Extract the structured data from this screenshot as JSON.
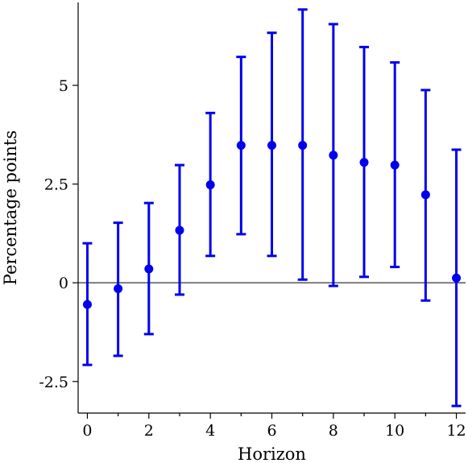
{
  "chart_data": {
    "type": "scatter",
    "title": "",
    "xlabel": "Horizon",
    "ylabel": "Percentage points",
    "xlim": [
      -0.3,
      12.3
    ],
    "ylim": [
      -3.3,
      7.1
    ],
    "x_ticks": [
      0,
      2,
      4,
      6,
      8,
      10,
      12
    ],
    "x_minor_ticks": [
      1,
      3,
      5,
      7,
      9,
      11
    ],
    "y_ticks": [
      -2.5,
      0,
      2.5,
      5
    ],
    "y_tick_labels": [
      "-2.5",
      "0",
      "2.5",
      "5"
    ],
    "x_tick_labels": [
      "0",
      "2",
      "4",
      "6",
      "8",
      "10",
      "12"
    ],
    "zero_line": true,
    "grid": false,
    "series": [
      {
        "points": [
          {
            "x": 0,
            "y": -0.55,
            "lower": -2.08,
            "upper": 1.0
          },
          {
            "x": 1,
            "y": -0.15,
            "lower": -1.85,
            "upper": 1.52
          },
          {
            "x": 2,
            "y": 0.35,
            "lower": -1.3,
            "upper": 2.02
          },
          {
            "x": 3,
            "y": 1.33,
            "lower": -0.3,
            "upper": 2.98
          },
          {
            "x": 4,
            "y": 2.48,
            "lower": 0.68,
            "upper": 4.3
          },
          {
            "x": 5,
            "y": 3.48,
            "lower": 1.23,
            "upper": 5.72
          },
          {
            "x": 6,
            "y": 3.48,
            "lower": 0.68,
            "upper": 6.33
          },
          {
            "x": 7,
            "y": 3.48,
            "lower": 0.08,
            "upper": 6.92
          },
          {
            "x": 8,
            "y": 3.23,
            "lower": -0.08,
            "upper": 6.55
          },
          {
            "x": 9,
            "y": 3.05,
            "lower": 0.15,
            "upper": 5.97
          },
          {
            "x": 10,
            "y": 2.98,
            "lower": 0.4,
            "upper": 5.58
          },
          {
            "x": 11,
            "y": 2.23,
            "lower": -0.45,
            "upper": 4.88
          },
          {
            "x": 12,
            "y": 0.12,
            "lower": -3.12,
            "upper": 3.37
          }
        ]
      }
    ],
    "colors": {
      "markers": "#0000ee",
      "axis": "#000000",
      "zero_line": "#000000"
    }
  }
}
